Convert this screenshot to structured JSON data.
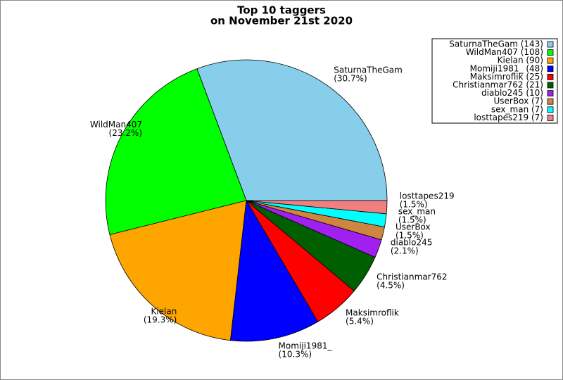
{
  "chart_data": {
    "type": "pie",
    "title": "Top 10 taggers",
    "subtitle": "on November 21st 2020",
    "categories": [
      "SaturnaTheGam",
      "WildMan407",
      "Kielan",
      "Momiji1981_",
      "Maksimroflik",
      "Christianmar762",
      "diablo245",
      "UserBox",
      "sex_man",
      "losttapes219"
    ],
    "values": [
      30.7,
      23.2,
      19.3,
      10.3,
      5.4,
      4.5,
      2.1,
      1.5,
      1.5,
      1.5
    ],
    "value_labels": [
      "(30.7%)",
      "(23.2%)",
      "(19.3%)",
      "(10.3%)",
      "(5.4%)",
      "(4.5%)",
      "(2.1%)",
      "(1.5%)",
      "(1.5%)",
      "(1.5%)"
    ],
    "colors": [
      "#87ceeb",
      "#00ff00",
      "#ffa500",
      "#0000ff",
      "#ff0000",
      "#005f00",
      "#a020f0",
      "#cd853f",
      "#00ffff",
      "#f08080"
    ],
    "legend": [
      "SaturnaTheGam (143)",
      "WildMan407 (108)",
      "Kielan (90)",
      "Momiji1981_ (48)",
      "Maksimroflik (25)",
      "Christianmar762 (21)",
      "diablo245 (10)",
      "UserBox (7)",
      "sex_man (7)",
      "losttapes219 (7)"
    ],
    "legend_position": "upper right"
  }
}
